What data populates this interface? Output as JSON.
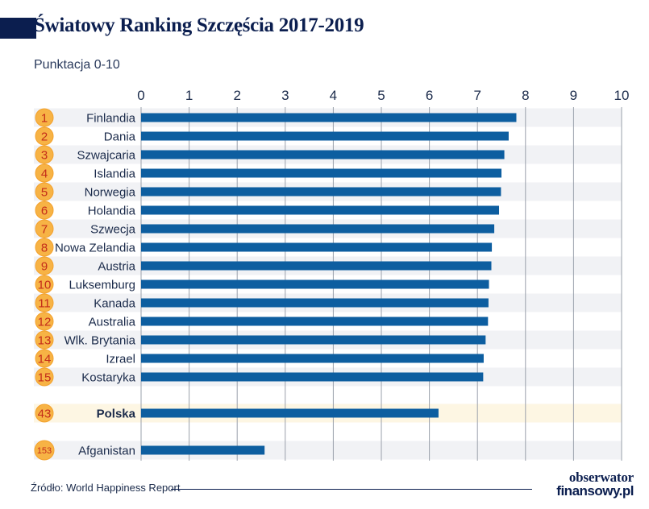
{
  "header": {
    "title": "Światowy Ranking Szczęścia 2017-2019",
    "subtitle": "Punktacja 0-10"
  },
  "footer": {
    "source": "Źródło: World Happiness Report",
    "logo_line1": "obserwator",
    "logo_line2": "finansowy.pl"
  },
  "colors": {
    "bar": "#0d5ea0",
    "badge_fill": "#f7b345",
    "badge_text": "#c42d1a",
    "highlight_row": "#fdf6e3",
    "stripe_row": "#f1f2f5",
    "axis_text": "#1a2a4a",
    "grid": "#9aa0ab"
  },
  "chart_data": {
    "type": "bar",
    "orientation": "horizontal",
    "title": "Światowy Ranking Szczęścia 2017-2019",
    "subtitle": "Punktacja 0-10",
    "xlim": [
      0,
      10
    ],
    "x_ticks": [
      "0",
      "1",
      "2",
      "3",
      "4",
      "5",
      "6",
      "7",
      "8",
      "9",
      "10"
    ],
    "grid": true,
    "series": [
      {
        "values": [
          7.81,
          7.65,
          7.56,
          7.5,
          7.49,
          7.45,
          7.35,
          7.3,
          7.29,
          7.24,
          7.23,
          7.22,
          7.17,
          7.13,
          7.12,
          6.19,
          2.57
        ]
      }
    ],
    "categories": [
      "Finlandia",
      "Dania",
      "Szwajcaria",
      "Islandia",
      "Norwegia",
      "Holandia",
      "Szwecja",
      "Nowa Zelandia",
      "Austria",
      "Luksemburg",
      "Kanada",
      "Australia",
      "Wlk. Brytania",
      "Izrael",
      "Kostaryka",
      "Polska",
      "Afganistan"
    ],
    "ranks": [
      "1",
      "2",
      "3",
      "4",
      "5",
      "6",
      "7",
      "8",
      "9",
      "10",
      "11",
      "12",
      "13",
      "14",
      "15",
      "43",
      "153"
    ],
    "highlight_category": "Polska"
  }
}
